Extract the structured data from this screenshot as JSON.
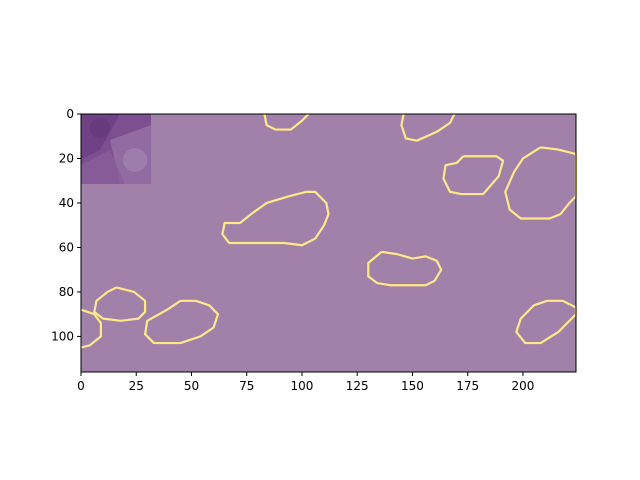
{
  "image": {
    "width": 224,
    "height": 116,
    "background_color": "#a180aa",
    "contour_color": "#ffe88a",
    "inset_description": "purple stained tissue texture",
    "x_ticks": [
      0,
      25,
      50,
      75,
      100,
      125,
      150,
      175,
      200
    ],
    "y_ticks": [
      0,
      20,
      40,
      60,
      80,
      100
    ]
  },
  "contours": [
    {
      "name": "c1",
      "points": [
        [
          83,
          0
        ],
        [
          84,
          5
        ],
        [
          88,
          7
        ],
        [
          95,
          7
        ],
        [
          100,
          3
        ],
        [
          103,
          0
        ]
      ]
    },
    {
      "name": "c2",
      "points": [
        [
          146,
          0
        ],
        [
          145,
          5
        ],
        [
          147,
          11
        ],
        [
          152,
          12
        ],
        [
          161,
          8
        ],
        [
          167,
          4
        ],
        [
          169,
          0
        ]
      ]
    },
    {
      "name": "c3",
      "points": [
        [
          173,
          19
        ],
        [
          170,
          22
        ],
        [
          165,
          23
        ],
        [
          164,
          29
        ],
        [
          167,
          35
        ],
        [
          172,
          36
        ],
        [
          182,
          36
        ],
        [
          189,
          28
        ],
        [
          191,
          21
        ],
        [
          188,
          19
        ],
        [
          180,
          19
        ]
      ]
    },
    {
      "name": "c4",
      "points": [
        [
          208,
          15
        ],
        [
          200,
          20
        ],
        [
          196,
          26
        ],
        [
          192,
          35
        ],
        [
          194,
          43
        ],
        [
          199,
          47
        ],
        [
          212,
          47
        ],
        [
          217,
          45
        ],
        [
          221,
          40
        ],
        [
          224,
          37
        ],
        [
          224,
          18
        ],
        [
          216,
          16
        ]
      ]
    },
    {
      "name": "c5",
      "points": [
        [
          102,
          35
        ],
        [
          94,
          37
        ],
        [
          84,
          40
        ],
        [
          77,
          45
        ],
        [
          72,
          49
        ],
        [
          65,
          49
        ],
        [
          64,
          54
        ],
        [
          67,
          58
        ],
        [
          80,
          58
        ],
        [
          92,
          58
        ],
        [
          100,
          59
        ],
        [
          106,
          56
        ],
        [
          110,
          50
        ],
        [
          112,
          45
        ],
        [
          111,
          40
        ],
        [
          106,
          35
        ]
      ]
    },
    {
      "name": "c6",
      "points": [
        [
          136,
          62
        ],
        [
          130,
          67
        ],
        [
          130,
          73
        ],
        [
          134,
          76
        ],
        [
          140,
          77
        ],
        [
          156,
          77
        ],
        [
          160,
          75
        ],
        [
          163,
          70
        ],
        [
          161,
          66
        ],
        [
          156,
          64
        ],
        [
          150,
          65
        ],
        [
          143,
          63
        ]
      ]
    },
    {
      "name": "c7",
      "points": [
        [
          16,
          78
        ],
        [
          12,
          80
        ],
        [
          7,
          84
        ],
        [
          6,
          89
        ],
        [
          10,
          92
        ],
        [
          18,
          93
        ],
        [
          26,
          92
        ],
        [
          29,
          89
        ],
        [
          29,
          84
        ],
        [
          24,
          80
        ]
      ]
    },
    {
      "name": "c8",
      "points": [
        [
          0,
          88
        ],
        [
          6,
          90
        ],
        [
          9,
          94
        ],
        [
          9,
          100
        ],
        [
          4,
          104
        ],
        [
          0,
          105
        ]
      ]
    },
    {
      "name": "c9",
      "points": [
        [
          45,
          84
        ],
        [
          39,
          88
        ],
        [
          30,
          93
        ],
        [
          29,
          99
        ],
        [
          33,
          103
        ],
        [
          45,
          103
        ],
        [
          54,
          100
        ],
        [
          60,
          96
        ],
        [
          62,
          90
        ],
        [
          58,
          86
        ],
        [
          52,
          84
        ]
      ]
    },
    {
      "name": "c10",
      "points": [
        [
          211,
          84
        ],
        [
          205,
          86
        ],
        [
          199,
          92
        ],
        [
          197,
          98
        ],
        [
          201,
          103
        ],
        [
          208,
          103
        ],
        [
          216,
          98
        ],
        [
          224,
          90
        ],
        [
          224,
          87
        ],
        [
          218,
          84
        ]
      ]
    }
  ]
}
